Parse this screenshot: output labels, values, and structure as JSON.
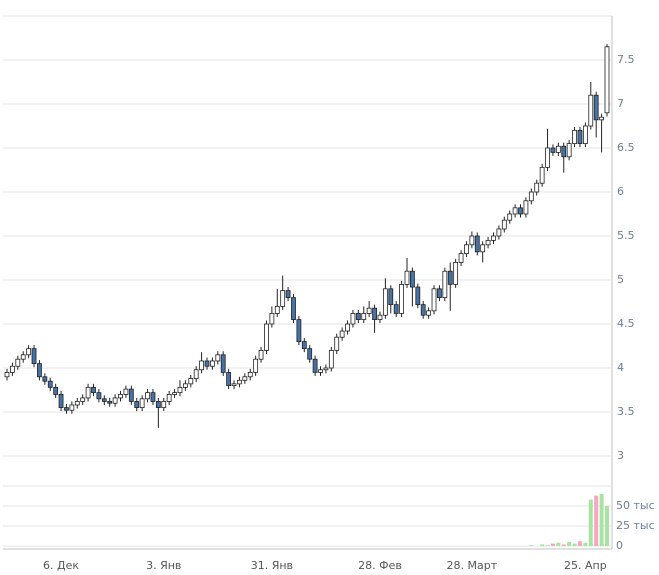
{
  "chart_data": {
    "type": "candlestick",
    "categories": [
      null,
      null,
      null,
      null,
      null,
      null,
      null,
      null,
      null,
      null,
      "6. Дек",
      null,
      null,
      null,
      null,
      null,
      null,
      null,
      null,
      null,
      null,
      null,
      null,
      null,
      null,
      null,
      null,
      null,
      null,
      "3. Янв",
      null,
      null,
      null,
      null,
      null,
      null,
      null,
      null,
      null,
      null,
      null,
      null,
      null,
      null,
      null,
      null,
      null,
      null,
      null,
      "31. Янв",
      null,
      null,
      null,
      null,
      null,
      null,
      null,
      null,
      null,
      null,
      null,
      null,
      null,
      null,
      null,
      null,
      null,
      null,
      null,
      "28. Фев",
      null,
      null,
      null,
      null,
      null,
      null,
      null,
      null,
      null,
      null,
      null,
      null,
      null,
      null,
      null,
      null,
      "28. Март",
      null,
      null,
      null,
      null,
      null,
      null,
      null,
      null,
      null,
      null,
      null,
      null,
      null,
      null,
      null,
      null,
      null,
      null,
      null,
      null,
      "25. Апр",
      null,
      null,
      null,
      null
    ],
    "open": [
      3.9,
      3.95,
      4.02,
      4.1,
      4.15,
      4.22,
      4.05,
      3.9,
      3.85,
      3.78,
      3.7,
      3.55,
      3.52,
      3.58,
      3.62,
      3.66,
      3.78,
      3.72,
      3.65,
      3.62,
      3.6,
      3.66,
      3.7,
      3.76,
      3.62,
      3.55,
      3.65,
      3.72,
      3.62,
      3.55,
      3.62,
      3.7,
      3.72,
      3.78,
      3.82,
      3.88,
      3.98,
      4.08,
      4.02,
      4.08,
      4.15,
      3.95,
      3.8,
      3.82,
      3.86,
      3.9,
      3.95,
      4.1,
      4.2,
      4.5,
      4.62,
      4.7,
      4.88,
      4.8,
      4.55,
      4.3,
      4.22,
      4.1,
      3.95,
      3.98,
      4.0,
      4.2,
      4.35,
      4.42,
      4.5,
      4.62,
      4.55,
      4.62,
      4.68,
      4.55,
      4.6,
      4.9,
      4.72,
      4.62,
      4.95,
      5.1,
      4.92,
      4.72,
      4.6,
      4.65,
      4.9,
      4.8,
      5.1,
      4.95,
      5.2,
      5.3,
      5.4,
      5.5,
      5.32,
      5.4,
      5.45,
      5.5,
      5.58,
      5.68,
      5.75,
      5.82,
      5.75,
      5.9,
      6.0,
      6.1,
      6.28,
      6.5,
      6.45,
      6.52,
      6.4,
      6.55,
      6.7,
      6.55,
      6.75,
      7.1,
      6.82,
      6.9
    ],
    "high": [
      3.99,
      4.06,
      4.14,
      4.19,
      4.26,
      4.26,
      4.09,
      3.94,
      3.89,
      3.82,
      3.74,
      3.59,
      3.62,
      3.66,
      3.7,
      3.82,
      3.82,
      3.76,
      3.69,
      3.66,
      3.7,
      3.74,
      3.8,
      3.8,
      3.66,
      3.69,
      3.76,
      3.76,
      3.66,
      3.66,
      3.74,
      3.76,
      3.86,
      3.86,
      3.92,
      4.02,
      4.18,
      4.12,
      4.12,
      4.19,
      4.19,
      3.99,
      3.86,
      3.9,
      3.94,
      3.99,
      4.14,
      4.24,
      4.54,
      4.7,
      4.9,
      5.05,
      4.92,
      4.84,
      4.59,
      4.34,
      4.26,
      4.14,
      4.02,
      4.04,
      4.24,
      4.39,
      4.46,
      4.54,
      4.66,
      4.66,
      4.7,
      4.76,
      4.72,
      4.64,
      5.02,
      4.94,
      4.76,
      4.99,
      5.25,
      5.14,
      4.96,
      4.76,
      4.69,
      4.94,
      4.94,
      5.14,
      5.2,
      5.24,
      5.34,
      5.44,
      5.55,
      5.54,
      5.44,
      5.49,
      5.54,
      5.62,
      5.72,
      5.79,
      5.86,
      5.86,
      5.94,
      6.04,
      6.14,
      6.32,
      6.72,
      6.54,
      6.56,
      6.56,
      6.59,
      6.74,
      6.74,
      6.79,
      7.25,
      7.14,
      6.89,
      7.68
    ],
    "low": [
      3.86,
      3.91,
      3.98,
      4.06,
      4.11,
      4.01,
      3.86,
      3.81,
      3.74,
      3.66,
      3.51,
      3.48,
      3.48,
      3.54,
      3.58,
      3.62,
      3.68,
      3.61,
      3.58,
      3.56,
      3.56,
      3.62,
      3.66,
      3.58,
      3.51,
      3.51,
      3.61,
      3.58,
      3.32,
      3.51,
      3.58,
      3.66,
      3.68,
      3.74,
      3.78,
      3.84,
      3.94,
      3.98,
      3.98,
      4.04,
      3.91,
      3.76,
      3.76,
      3.78,
      3.82,
      3.86,
      3.91,
      4.06,
      4.16,
      4.46,
      4.58,
      4.66,
      4.76,
      4.51,
      4.26,
      4.18,
      4.06,
      3.91,
      3.91,
      3.94,
      3.96,
      4.16,
      4.31,
      4.38,
      4.46,
      4.51,
      4.51,
      4.58,
      4.4,
      4.51,
      4.56,
      4.62,
      4.58,
      4.58,
      4.91,
      4.7,
      4.68,
      4.56,
      4.56,
      4.61,
      4.76,
      4.76,
      4.65,
      4.91,
      5.16,
      5.26,
      5.36,
      5.28,
      5.2,
      5.36,
      5.41,
      5.46,
      5.54,
      5.64,
      5.71,
      5.71,
      5.71,
      5.86,
      5.96,
      6.06,
      6.24,
      6.41,
      6.41,
      6.22,
      6.36,
      6.51,
      6.51,
      6.51,
      6.71,
      6.62,
      6.45,
      6.86
    ],
    "close": [
      3.95,
      4.02,
      4.1,
      4.15,
      4.22,
      4.05,
      3.9,
      3.85,
      3.78,
      3.7,
      3.55,
      3.52,
      3.58,
      3.62,
      3.66,
      3.78,
      3.72,
      3.65,
      3.62,
      3.6,
      3.66,
      3.7,
      3.76,
      3.62,
      3.55,
      3.65,
      3.72,
      3.62,
      3.55,
      3.62,
      3.7,
      3.72,
      3.78,
      3.82,
      3.88,
      3.98,
      4.08,
      4.02,
      4.08,
      4.15,
      3.95,
      3.8,
      3.82,
      3.86,
      3.9,
      3.95,
      4.1,
      4.2,
      4.5,
      4.62,
      4.7,
      4.88,
      4.8,
      4.55,
      4.3,
      4.22,
      4.1,
      3.95,
      3.98,
      4.0,
      4.2,
      4.35,
      4.42,
      4.5,
      4.62,
      4.55,
      4.62,
      4.68,
      4.55,
      4.6,
      4.9,
      4.72,
      4.62,
      4.95,
      5.1,
      4.92,
      4.72,
      4.6,
      4.65,
      4.9,
      4.8,
      5.1,
      4.95,
      5.2,
      5.3,
      5.4,
      5.5,
      5.32,
      5.4,
      5.45,
      5.5,
      5.58,
      5.68,
      5.75,
      5.82,
      5.75,
      5.9,
      6.0,
      6.1,
      6.28,
      6.5,
      6.45,
      6.52,
      6.4,
      6.55,
      6.7,
      6.55,
      6.75,
      7.1,
      6.82,
      6.85,
      7.65
    ],
    "up_color": "#ffffff",
    "down_color": "#4572a7",
    "wick_color": "#222222",
    "ylim": [
      3,
      8
    ],
    "yticks": [
      3,
      3.5,
      4,
      4.5,
      5,
      5.5,
      6,
      6.5,
      7,
      7.5
    ],
    "grid": true,
    "volume": {
      "values": [
        0,
        0,
        0,
        0,
        0,
        0,
        0,
        0,
        0,
        0,
        0,
        0,
        0,
        0,
        0,
        0,
        0,
        0,
        0,
        0,
        0,
        0,
        0,
        0,
        0,
        0,
        0,
        0,
        0,
        0,
        0,
        0,
        0,
        0,
        0,
        0,
        0,
        0,
        0,
        0,
        0,
        0,
        0,
        0,
        0,
        0,
        0,
        0,
        0,
        0,
        0,
        0,
        0,
        0,
        0,
        0,
        0,
        0,
        0,
        0,
        0,
        0,
        0,
        0,
        0,
        0,
        0,
        0,
        0,
        0,
        0,
        0,
        0,
        0,
        0,
        0,
        0,
        0,
        0,
        0,
        0,
        0,
        0,
        0,
        0,
        0,
        0,
        0,
        0,
        0,
        0,
        0,
        0,
        0,
        0,
        0,
        0,
        1000,
        0,
        2000,
        1000,
        3000,
        4000,
        2000,
        5000,
        3000,
        6000,
        4000,
        58000,
        63000,
        65000,
        50000
      ],
      "up_color": "#a9e3a1",
      "down_color": "#f4a6c3",
      "ylim": [
        0,
        75000
      ],
      "yticks": [
        0,
        {
          "value": 25000,
          "label": "25 тыс"
        },
        {
          "value": 50000,
          "label": "50 тыс"
        }
      ]
    }
  }
}
